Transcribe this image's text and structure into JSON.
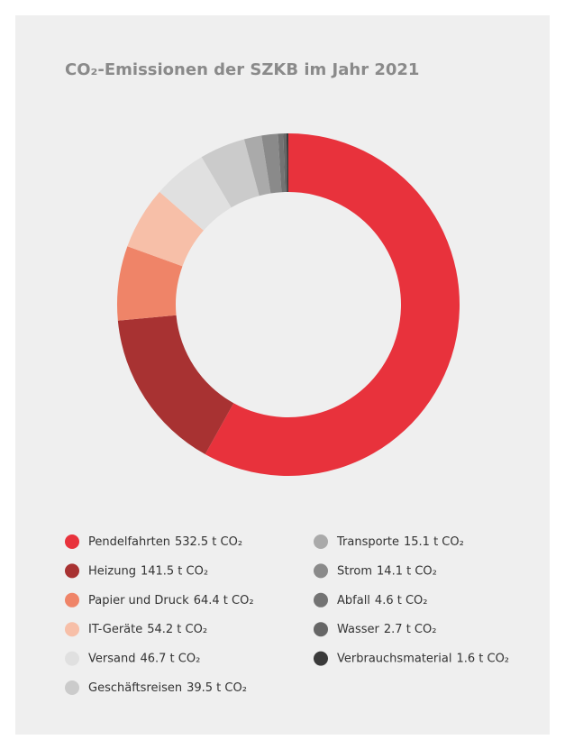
{
  "chart_data": {
    "type": "donut",
    "title": "CO₂-Emissionen der SZKB im Jahr 2021",
    "categories": [
      "Pendelfahrten",
      "Heizung",
      "Papier und Druck",
      "IT-Geräte",
      "Versand",
      "Geschäftsreisen",
      "Transporte",
      "Strom",
      "Abfall",
      "Wasser",
      "Verbrauchsmaterial"
    ],
    "values": [
      532.5,
      141.5,
      64.4,
      54.2,
      46.7,
      39.5,
      15.1,
      14.1,
      4.6,
      2.7,
      1.6
    ],
    "value_labels": [
      "532.5 t CO₂",
      "141.5 t CO₂",
      "64.4 t CO₂",
      "54.2 t CO₂",
      "46.7 t CO₂",
      "39.5 t CO₂",
      "15.1 t CO₂",
      "14.1 t CO₂",
      "4.6 t CO₂",
      "2.7 t CO₂",
      "1.6 t CO₂"
    ],
    "colors": [
      "#e8323c",
      "#a83232",
      "#ef8468",
      "#f7bfa8",
      "#e0e0e0",
      "#cbcbcb",
      "#aaaaaa",
      "#8a8a8a",
      "#737373",
      "#666666",
      "#3a3a3a"
    ]
  }
}
